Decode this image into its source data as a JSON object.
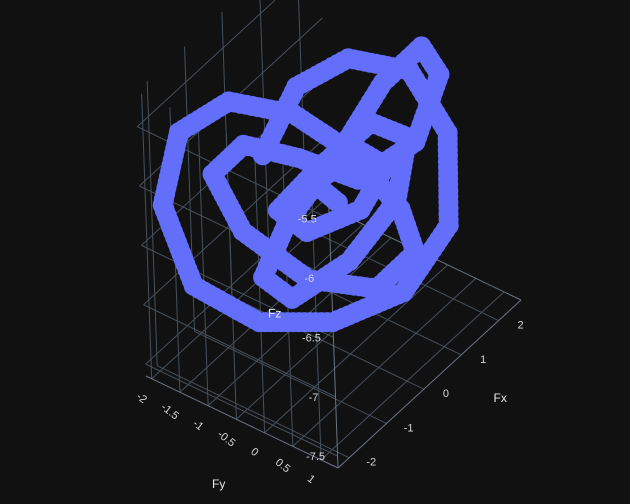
{
  "chart_data": {
    "type": "scatter3d",
    "title": "",
    "axes": {
      "x": {
        "label": "Fx",
        "ticks": [
          "-2",
          "-1",
          "0",
          "1",
          "2"
        ],
        "range": [
          -2.3,
          2.6
        ]
      },
      "y": {
        "label": "Fy",
        "ticks": [
          "-2",
          "-1.5",
          "-1",
          "-0.5",
          "0",
          "0.5",
          "1"
        ],
        "range": [
          -2.1,
          1.3
        ]
      },
      "z": {
        "label": "Fz",
        "ticks": [
          "-7.5",
          "-7",
          "-6.5",
          "-6",
          "-5.5"
        ],
        "range": [
          -7.6,
          -5.2
        ]
      }
    },
    "grid": true,
    "background": "#111111",
    "marker": {
      "color": "#636efa",
      "shape": "circle"
    },
    "series": [
      {
        "points": [
          [
            -0.8,
            -0.9,
            -5.9
          ],
          [
            -0.3,
            -0.6,
            -5.4
          ],
          [
            0.5,
            -0.2,
            -5.3
          ],
          [
            1.5,
            0.2,
            -5.6
          ],
          [
            2.0,
            0.5,
            -6.2
          ],
          [
            1.8,
            0.6,
            -6.9
          ],
          [
            1.0,
            0.3,
            -7.3
          ],
          [
            0.0,
            -0.3,
            -7.4
          ],
          [
            -0.9,
            -1.0,
            -7.3
          ],
          [
            -1.7,
            -1.6,
            -6.9
          ],
          [
            -2.0,
            -1.9,
            -6.2
          ],
          [
            -1.8,
            -1.7,
            -5.6
          ],
          [
            -1.2,
            -1.2,
            -5.4
          ],
          [
            -0.4,
            -0.6,
            -5.6
          ],
          [
            0.3,
            -0.1,
            -6.0
          ],
          [
            1.0,
            0.3,
            -6.6
          ],
          [
            1.2,
            0.4,
            -7.0
          ],
          [
            0.6,
            0.1,
            -7.2
          ],
          [
            -0.3,
            -0.5,
            -7.0
          ],
          [
            -1.1,
            -1.1,
            -6.5
          ],
          [
            -1.4,
            -1.4,
            -6.0
          ],
          [
            -1.0,
            -1.1,
            -5.8
          ],
          [
            -0.3,
            -0.6,
            -6.0
          ],
          [
            0.5,
            -0.1,
            -6.3
          ],
          [
            1.3,
            0.4,
            -6.1
          ],
          [
            1.7,
            0.6,
            -5.6
          ],
          [
            1.4,
            0.5,
            -5.3
          ],
          [
            0.8,
            0.2,
            -5.5
          ],
          [
            0.2,
            -0.2,
            -6.0
          ],
          [
            -0.5,
            -0.7,
            -6.5
          ],
          [
            -0.9,
            -0.9,
            -6.9
          ],
          [
            -0.6,
            -0.6,
            -7.1
          ],
          [
            0.2,
            -0.1,
            -6.9
          ],
          [
            0.9,
            0.3,
            -6.5
          ],
          [
            1.1,
            0.4,
            -6.0
          ],
          [
            0.6,
            0.1,
            -5.8
          ],
          [
            -0.1,
            -0.4,
            -6.1
          ],
          [
            -0.6,
            -0.8,
            -6.4
          ],
          [
            -0.3,
            -0.5,
            -6.6
          ],
          [
            0.4,
            0.0,
            -6.5
          ],
          [
            0.8,
            0.2,
            -6.2
          ],
          [
            0.4,
            0.0,
            -6.0
          ],
          [
            -0.2,
            -0.4,
            -6.2
          ],
          [
            0.1,
            -0.2,
            -6.4
          ]
        ]
      }
    ]
  }
}
